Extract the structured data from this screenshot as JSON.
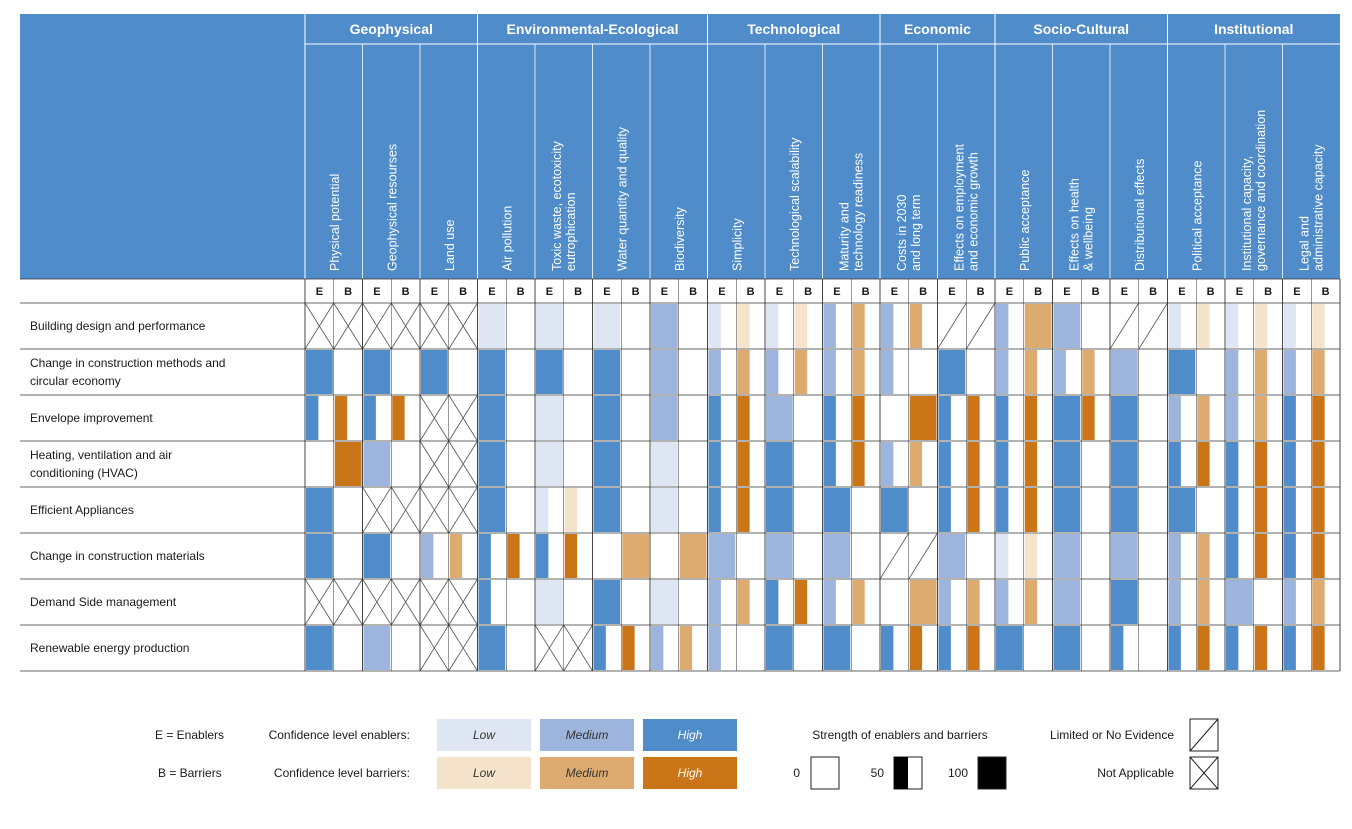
{
  "chart_data": {
    "type": "heatmap",
    "categories": [
      {
        "name": "Geophysical",
        "indicators": [
          "Physical potential",
          "Geophysical resourses",
          "Land use"
        ]
      },
      {
        "name": "Environmental-Ecological",
        "indicators": [
          "Air pollution",
          "Toxic waste, ecotoxicity eutrophication",
          "Water quantity and quality",
          "Biodiversity"
        ]
      },
      {
        "name": "Technological",
        "indicators": [
          "Simplicity",
          "Technological scalability",
          "Maturity and technology readiness"
        ]
      },
      {
        "name": "Economic",
        "indicators": [
          "Costs in 2030 and long term",
          "Effects on employment and economic growth"
        ]
      },
      {
        "name": "Socio-Cultural",
        "indicators": [
          "Public acceptance",
          "Effects on health & wellbeing",
          "Distributional effects"
        ]
      },
      {
        "name": "Institutional",
        "indicators": [
          "Political acceptance",
          "Institutional capacity, governance and coordination",
          "Legal and administrative capacity"
        ]
      }
    ],
    "sub_columns": [
      "E",
      "B"
    ],
    "rows": [
      "Building design and performance",
      "Change in construction methods and circular economy",
      "Envelope improvement",
      "Heating, ventilation and air conditioning (HVAC)",
      "Efficient Appliances",
      "Change in construction materials",
      "Demand Side management",
      "Renewable energy production"
    ],
    "encoding": {
      "cell": "[confidence, strength]",
      "confidence": "L/M/H",
      "strength": "0/50/100",
      "NA": "Not Applicable",
      "LE": "Limited or No Evidence"
    },
    "cells": [
      [
        "NA",
        "NA",
        "NA",
        "NA",
        "NA",
        "NA",
        [
          "L",
          100
        ],
        [
          "",
          0
        ],
        [
          "L",
          100
        ],
        [
          "",
          0
        ],
        [
          "L",
          100
        ],
        [
          "",
          0
        ],
        [
          "M",
          100
        ],
        [
          "",
          0
        ],
        [
          "L",
          50
        ],
        [
          "L",
          50
        ],
        [
          "L",
          50
        ],
        [
          "L",
          50
        ],
        [
          "M",
          50
        ],
        [
          "M",
          50
        ],
        [
          "M",
          50
        ],
        [
          "M",
          50
        ],
        "LE",
        "LE",
        [
          "M",
          50
        ],
        [
          "M",
          100
        ],
        [
          "M",
          100
        ],
        [
          "",
          0
        ],
        "LE",
        "LE",
        [
          "L",
          50
        ],
        [
          "L",
          50
        ],
        [
          "L",
          50
        ],
        [
          "L",
          50
        ],
        [
          "L",
          50
        ],
        [
          "L",
          50
        ]
      ],
      [
        [
          "H",
          100
        ],
        [
          "",
          0
        ],
        [
          "H",
          100
        ],
        [
          "",
          0
        ],
        [
          "H",
          100
        ],
        [
          "",
          0
        ],
        [
          "H",
          100
        ],
        [
          "",
          0
        ],
        [
          "H",
          100
        ],
        [
          "",
          0
        ],
        [
          "H",
          100
        ],
        [
          "",
          0
        ],
        [
          "M",
          100
        ],
        [
          "",
          0
        ],
        [
          "M",
          50
        ],
        [
          "M",
          50
        ],
        [
          "M",
          50
        ],
        [
          "M",
          50
        ],
        [
          "M",
          50
        ],
        [
          "M",
          50
        ],
        [
          "M",
          50
        ],
        [
          "",
          0
        ],
        [
          "H",
          100
        ],
        [
          "",
          0
        ],
        [
          "M",
          50
        ],
        [
          "M",
          50
        ],
        [
          "M",
          50
        ],
        [
          "M",
          50
        ],
        [
          "M",
          100
        ],
        [
          "",
          0
        ],
        [
          "H",
          100
        ],
        [
          "",
          0
        ],
        [
          "M",
          50
        ],
        [
          "M",
          50
        ],
        [
          "M",
          50
        ],
        [
          "M",
          50
        ]
      ],
      [
        [
          "H",
          50
        ],
        [
          "H",
          50
        ],
        [
          "H",
          50
        ],
        [
          "H",
          50
        ],
        "NA",
        "NA",
        [
          "H",
          100
        ],
        [
          "",
          0
        ],
        [
          "L",
          100
        ],
        [
          "",
          0
        ],
        [
          "H",
          100
        ],
        [
          "",
          0
        ],
        [
          "M",
          100
        ],
        [
          "",
          0
        ],
        [
          "H",
          50
        ],
        [
          "H",
          50
        ],
        [
          "M",
          100
        ],
        [
          "",
          0
        ],
        [
          "H",
          50
        ],
        [
          "H",
          50
        ],
        [
          "",
          0
        ],
        [
          "H",
          100
        ],
        [
          "H",
          50
        ],
        [
          "H",
          50
        ],
        [
          "H",
          50
        ],
        [
          "H",
          50
        ],
        [
          "H",
          100
        ],
        [
          "H",
          50
        ],
        [
          "H",
          100
        ],
        [
          "",
          0
        ],
        [
          "M",
          50
        ],
        [
          "M",
          50
        ],
        [
          "M",
          50
        ],
        [
          "M",
          50
        ],
        [
          "H",
          50
        ],
        [
          "H",
          50
        ]
      ],
      [
        [
          "",
          0
        ],
        [
          "H",
          100
        ],
        [
          "M",
          100
        ],
        [
          "",
          0
        ],
        "NA",
        "NA",
        [
          "H",
          100
        ],
        [
          "",
          0
        ],
        [
          "L",
          100
        ],
        [
          "",
          0
        ],
        [
          "H",
          100
        ],
        [
          "",
          0
        ],
        [
          "L",
          100
        ],
        [
          "",
          0
        ],
        [
          "H",
          50
        ],
        [
          "H",
          50
        ],
        [
          "H",
          100
        ],
        [
          "",
          0
        ],
        [
          "H",
          50
        ],
        [
          "H",
          50
        ],
        [
          "M",
          50
        ],
        [
          "M",
          50
        ],
        [
          "H",
          50
        ],
        [
          "H",
          50
        ],
        [
          "H",
          50
        ],
        [
          "H",
          50
        ],
        [
          "H",
          100
        ],
        [
          "",
          0
        ],
        [
          "H",
          100
        ],
        [
          "",
          0
        ],
        [
          "H",
          50
        ],
        [
          "H",
          50
        ],
        [
          "H",
          50
        ],
        [
          "H",
          50
        ],
        [
          "H",
          50
        ],
        [
          "H",
          50
        ]
      ],
      [
        [
          "H",
          100
        ],
        [
          "",
          0
        ],
        "NA",
        "NA",
        "NA",
        "NA",
        [
          "H",
          100
        ],
        [
          "",
          0
        ],
        [
          "L",
          50
        ],
        [
          "L",
          50
        ],
        [
          "H",
          100
        ],
        [
          "",
          0
        ],
        [
          "L",
          100
        ],
        [
          "",
          0
        ],
        [
          "H",
          50
        ],
        [
          "H",
          50
        ],
        [
          "H",
          100
        ],
        [
          "",
          0
        ],
        [
          "H",
          100
        ],
        [
          "",
          0
        ],
        [
          "H",
          100
        ],
        [
          "",
          0
        ],
        [
          "H",
          50
        ],
        [
          "H",
          50
        ],
        [
          "H",
          50
        ],
        [
          "H",
          50
        ],
        [
          "H",
          100
        ],
        [
          "",
          0
        ],
        [
          "H",
          100
        ],
        [
          "",
          0
        ],
        [
          "H",
          100
        ],
        [
          "",
          0
        ],
        [
          "H",
          50
        ],
        [
          "H",
          50
        ],
        [
          "H",
          50
        ],
        [
          "H",
          50
        ]
      ],
      [
        [
          "H",
          100
        ],
        [
          "",
          0
        ],
        [
          "H",
          100
        ],
        [
          "",
          0
        ],
        [
          "M",
          50
        ],
        [
          "M",
          50
        ],
        [
          "H",
          50
        ],
        [
          "H",
          50
        ],
        [
          "H",
          50
        ],
        [
          "H",
          50
        ],
        [
          "",
          0
        ],
        [
          "M",
          100
        ],
        [
          "",
          0
        ],
        [
          "M",
          100
        ],
        [
          "M",
          100
        ],
        [
          "",
          0
        ],
        [
          "M",
          100
        ],
        [
          "",
          0
        ],
        [
          "M",
          100
        ],
        [
          "",
          0
        ],
        "LE",
        "LE",
        [
          "M",
          100
        ],
        [
          "",
          0
        ],
        [
          "L",
          50
        ],
        [
          "L",
          50
        ],
        [
          "M",
          100
        ],
        [
          "",
          0
        ],
        [
          "M",
          100
        ],
        [
          "",
          0
        ],
        [
          "M",
          50
        ],
        [
          "M",
          50
        ],
        [
          "H",
          50
        ],
        [
          "H",
          50
        ],
        [
          "H",
          50
        ],
        [
          "H",
          50
        ]
      ],
      [
        "NA",
        "NA",
        "NA",
        "NA",
        "NA",
        "NA",
        [
          "H",
          50
        ],
        [
          "",
          0
        ],
        [
          "L",
          100
        ],
        [
          "",
          0
        ],
        [
          "H",
          100
        ],
        [
          "",
          0
        ],
        [
          "L",
          100
        ],
        [
          "",
          0
        ],
        [
          "M",
          50
        ],
        [
          "M",
          50
        ],
        [
          "H",
          50
        ],
        [
          "H",
          50
        ],
        [
          "M",
          50
        ],
        [
          "M",
          50
        ],
        [
          "",
          0
        ],
        [
          "M",
          100
        ],
        [
          "M",
          50
        ],
        [
          "M",
          50
        ],
        [
          "M",
          50
        ],
        [
          "M",
          50
        ],
        [
          "M",
          100
        ],
        [
          "",
          0
        ],
        [
          "H",
          100
        ],
        [
          "",
          0
        ],
        [
          "M",
          50
        ],
        [
          "M",
          50
        ],
        [
          "M",
          100
        ],
        [
          "",
          0
        ],
        [
          "M",
          50
        ],
        [
          "M",
          50
        ]
      ],
      [
        [
          "H",
          100
        ],
        [
          "",
          0
        ],
        [
          "M",
          100
        ],
        [
          "",
          0
        ],
        "NA",
        "NA",
        [
          "H",
          100
        ],
        [
          "",
          0
        ],
        "NA",
        "NA",
        [
          "H",
          50
        ],
        [
          "H",
          50
        ],
        [
          "M",
          50
        ],
        [
          "M",
          50
        ],
        [
          "M",
          50
        ],
        [
          "",
          0
        ],
        [
          "H",
          100
        ],
        [
          "",
          0
        ],
        [
          "H",
          100
        ],
        [
          "",
          0
        ],
        [
          "H",
          50
        ],
        [
          "H",
          50
        ],
        [
          "H",
          50
        ],
        [
          "H",
          50
        ],
        [
          "H",
          100
        ],
        [
          "",
          0
        ],
        [
          "H",
          100
        ],
        [
          "",
          0
        ],
        [
          "H",
          50
        ],
        [
          "",
          0
        ],
        [
          "H",
          50
        ],
        [
          "H",
          50
        ],
        [
          "H",
          50
        ],
        [
          "H",
          50
        ],
        [
          "H",
          50
        ],
        [
          "H",
          50
        ]
      ]
    ]
  },
  "legend": {
    "enablers_key": "E = Enablers",
    "barriers_key": "B = Barriers",
    "conf_enablers": "Confidence level enablers:",
    "conf_barriers": "Confidence level barriers:",
    "levels": [
      "Low",
      "Medium",
      "High"
    ],
    "strength_title": "Strength of enablers and barriers",
    "strength_values": [
      "0",
      "50",
      "100"
    ],
    "limited": "Limited or No Evidence",
    "not_applicable": "Not Applicable"
  },
  "colors": {
    "header_blue": "#4f8cc9",
    "enabler_low": "#dfe6f3",
    "enabler_medium": "#9db5dc",
    "enabler_high": "#4f8cc9",
    "barrier_low": "#f6e3cc",
    "barrier_medium": "#ddab6f",
    "barrier_high": "#c97518"
  }
}
